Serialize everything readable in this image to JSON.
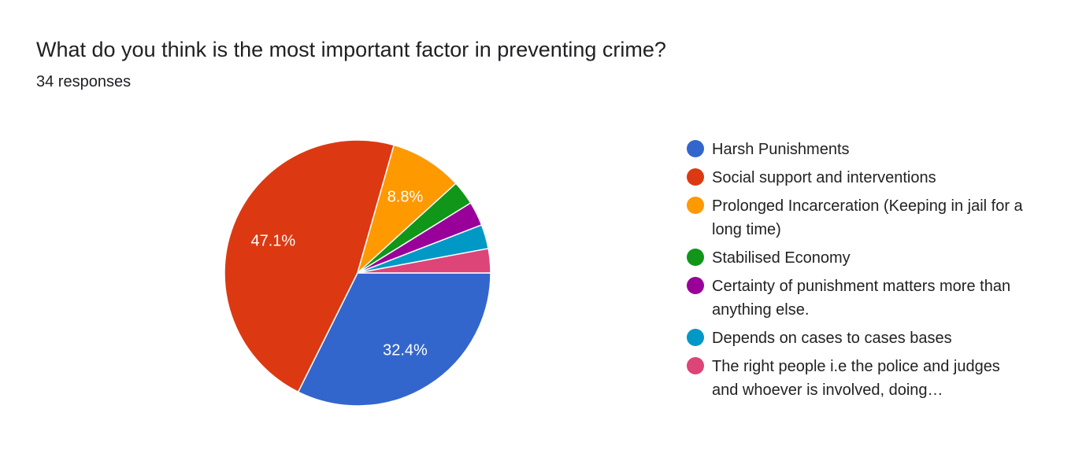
{
  "header": {
    "title": "What do you think is the most important factor in preventing crime?",
    "responses": "34 responses"
  },
  "chart_data": {
    "type": "pie",
    "title": "What do you think is the most important factor in preventing crime?",
    "total": 34,
    "legend_position": "right",
    "slices": [
      {
        "label": "Harsh Punishments",
        "value": 11,
        "percent_label": "32.4%",
        "color": "#3366cc"
      },
      {
        "label": "Social support and interventions",
        "value": 16,
        "percent_label": "47.1%",
        "color": "#dc3912"
      },
      {
        "label": "Prolonged Incarceration (Keeping in jail for a long time)",
        "value": 3,
        "percent_label": "8.8%",
        "color": "#ff9900"
      },
      {
        "label": "Stabilised Economy",
        "value": 1,
        "percent_label": "",
        "color": "#109618"
      },
      {
        "label": "Certainty of punishment matters more than anything else.",
        "value": 1,
        "percent_label": "",
        "color": "#990099"
      },
      {
        "label": "Depends on cases to cases bases",
        "value": 1,
        "percent_label": "",
        "color": "#0099c6"
      },
      {
        "label": "The right people i.e the police and judges and whoever is involved, doing…",
        "value": 1,
        "percent_label": "",
        "color": "#dd4477"
      }
    ]
  }
}
